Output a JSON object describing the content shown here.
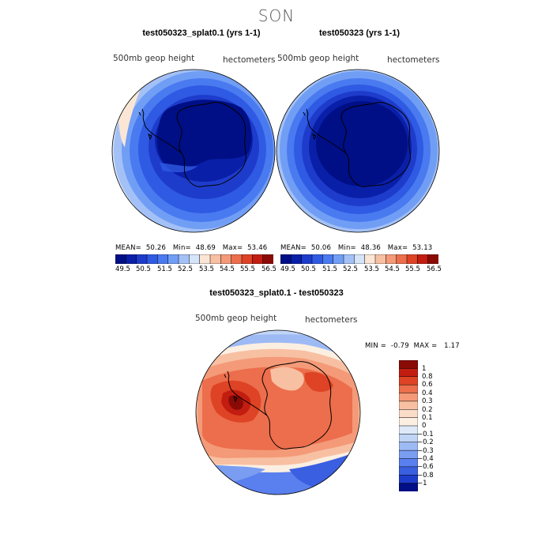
{
  "figure": {
    "season": "SON",
    "panels": [
      {
        "title": "test050323_splat0.1 (yrs 1-1)",
        "variable": "500mb geop height",
        "units": "hectometers",
        "stats": {
          "mean_label": "MEAN=",
          "mean": "50.26",
          "min_label": "Min=",
          "min": "48.69",
          "max_label": "Max=",
          "max": "53.46"
        },
        "colorbar": {
          "colors": [
            "#000f86",
            "#0a1fa8",
            "#1e3ccb",
            "#2f5ae3",
            "#4a7af0",
            "#719ef5",
            "#a3c1f6",
            "#d6e4f8",
            "#fbe6d6",
            "#f8c0a2",
            "#f49a78",
            "#ec6e4c",
            "#dd4324",
            "#c21d10",
            "#8a0a06"
          ],
          "tick_labels": [
            "49.5",
            "50.5",
            "51.5",
            "52.5",
            "53.5",
            "54.5",
            "55.5",
            "56.5"
          ]
        }
      },
      {
        "title": "test050323 (yrs 1-1)",
        "variable": "500mb geop height",
        "units": "hectometers",
        "stats": {
          "mean_label": "MEAN=",
          "mean": "50.06",
          "min_label": "Min=",
          "min": "48.36",
          "max_label": "Max=",
          "max": "53.13"
        },
        "colorbar": {
          "colors": [
            "#000f86",
            "#0a1fa8",
            "#1e3ccb",
            "#2f5ae3",
            "#4a7af0",
            "#719ef5",
            "#a3c1f6",
            "#d6e4f8",
            "#fbe6d6",
            "#f8c0a2",
            "#f49a78",
            "#ec6e4c",
            "#dd4324",
            "#c21d10",
            "#8a0a06"
          ],
          "tick_labels": [
            "49.5",
            "50.5",
            "51.5",
            "52.5",
            "53.5",
            "54.5",
            "55.5",
            "56.5"
          ]
        }
      }
    ],
    "difference": {
      "title": "test050323_splat0.1 - test050323",
      "variable": "500mb geop height",
      "units": "hectometers",
      "stats": {
        "min_label": "MIN =",
        "min": "-0.79",
        "max_label": "MAX =",
        "max": "1.17"
      },
      "colorbar": {
        "colors": [
          "#8a0a06",
          "#c21d10",
          "#dd4324",
          "#ec6e4c",
          "#f49a78",
          "#f8c0a2",
          "#fbdcc8",
          "#fbefe2",
          "#dde8f8",
          "#c0d4f6",
          "#9dbaf5",
          "#7a9df2",
          "#5a7fee",
          "#3a5fe0",
          "#1e3ccb",
          "#000f86"
        ],
        "tick_labels": [
          "1",
          "0.8",
          "0.6",
          "0.4",
          "0.3",
          "0.2",
          "0.1",
          "0",
          "−0.1",
          "−0.2",
          "−0.3",
          "−0.4",
          "−0.6",
          "−0.8",
          "−1"
        ]
      }
    }
  }
}
